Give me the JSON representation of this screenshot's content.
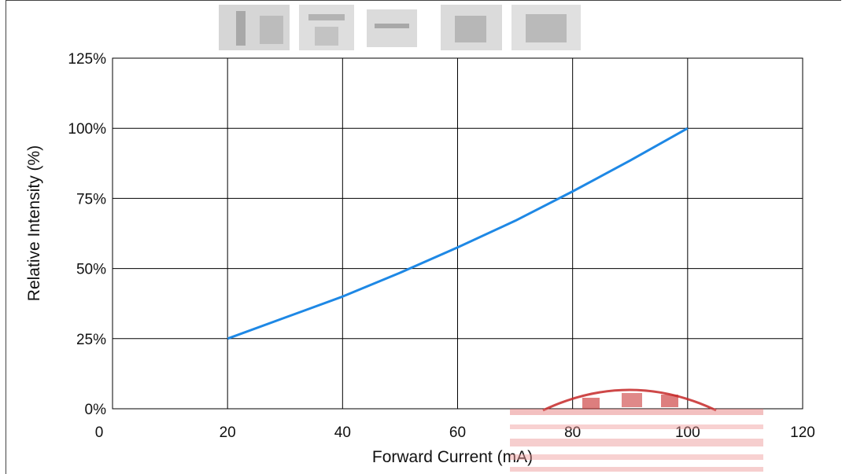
{
  "chart_data": {
    "type": "line",
    "xlabel": "Forward Current (mA)",
    "ylabel": "Relative Intensity (%)",
    "xlim": [
      0,
      120
    ],
    "ylim": [
      0,
      125
    ],
    "x_ticks": [
      "0",
      "20",
      "40",
      "60",
      "80",
      "100",
      "120"
    ],
    "y_ticks": [
      "0%",
      "25%",
      "50%",
      "75%",
      "100%",
      "125%"
    ],
    "grid": true,
    "series": [
      {
        "color": "#1e88e5",
        "x": [
          20,
          30,
          40,
          50,
          60,
          70,
          80,
          90,
          100
        ],
        "y": [
          25,
          32.5,
          40,
          48.5,
          57.5,
          67,
          77.5,
          88.5,
          100
        ]
      }
    ]
  }
}
